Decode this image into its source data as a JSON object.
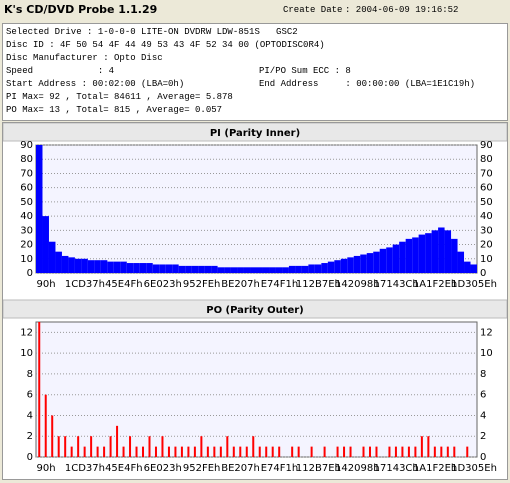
{
  "header": {
    "title": "K's CD/DVD Probe 1.1.29",
    "create_date_label": "Create Date",
    "create_date": ": 2004-06-09 19:16:52"
  },
  "info": [
    [
      "Selected Drive : 1-0-0-0 LITE-ON DVDRW LDW-851S   GSC2"
    ],
    [
      "Disc ID : 4F 50 54 4F 44 49 53 43 4F 52 34 00 (OPTODISC0R4)"
    ],
    [
      "Disc Manufacturer : Opto Disc"
    ],
    [
      "Speed            : 4",
      "PI/PO Sum ECC : 8"
    ],
    [
      "Start Address : 00:02:00 (LBA=0h)",
      "End Address     : 00:00:00 (LBA=1E1C19h)"
    ],
    [
      "PI Max= 92 , Total= 84611 , Average= 5.878"
    ],
    [
      "PO Max= 13 , Total= 815 , Average= 0.057"
    ]
  ],
  "chart_data": [
    {
      "type": "bar",
      "title": "PI (Parity Inner)",
      "color": "#0000ff",
      "grid": true,
      "ylim": [
        0,
        90
      ],
      "yticks": [
        0,
        10,
        20,
        30,
        40,
        50,
        60,
        70,
        80,
        90
      ],
      "categories": [
        "90h",
        null,
        null,
        null,
        null,
        null,
        "1CD37h",
        null,
        null,
        null,
        null,
        null,
        "45E4Fh",
        null,
        null,
        null,
        null,
        null,
        "6E023h",
        null,
        null,
        null,
        null,
        null,
        "952FEh",
        null,
        null,
        null,
        null,
        null,
        "BE207h",
        null,
        null,
        null,
        null,
        null,
        "E74F1h",
        null,
        null,
        null,
        null,
        null,
        "112B7Eh",
        null,
        null,
        null,
        null,
        null,
        "142098h",
        null,
        null,
        null,
        null,
        null,
        "17143Ch",
        null,
        null,
        null,
        null,
        null,
        "1A1F2Eh",
        null,
        null,
        null,
        null,
        null,
        "1D305Eh",
        null
      ],
      "values": [
        90,
        40,
        22,
        15,
        12,
        11,
        10,
        10,
        9,
        9,
        9,
        8,
        8,
        8,
        7,
        7,
        7,
        7,
        6,
        6,
        6,
        6,
        5,
        5,
        5,
        5,
        5,
        5,
        4,
        4,
        4,
        4,
        4,
        4,
        4,
        4,
        4,
        4,
        4,
        5,
        5,
        5,
        6,
        6,
        7,
        8,
        9,
        10,
        11,
        12,
        13,
        14,
        15,
        17,
        18,
        20,
        22,
        24,
        25,
        27,
        28,
        30,
        32,
        30,
        24,
        15,
        8,
        6
      ]
    },
    {
      "type": "bar",
      "title": "PO (Parity Outer)",
      "color": "#ff0000",
      "grid": true,
      "ylim": [
        0,
        13
      ],
      "yticks": [
        0,
        2,
        4,
        6,
        8,
        10,
        12
      ],
      "categories": [
        "90h",
        null,
        null,
        null,
        null,
        null,
        "1CD37h",
        null,
        null,
        null,
        null,
        null,
        "45E4Fh",
        null,
        null,
        null,
        null,
        null,
        "6E023h",
        null,
        null,
        null,
        null,
        null,
        "952FEh",
        null,
        null,
        null,
        null,
        null,
        "BE207h",
        null,
        null,
        null,
        null,
        null,
        "E74F1h",
        null,
        null,
        null,
        null,
        null,
        "112B7Eh",
        null,
        null,
        null,
        null,
        null,
        "142098h",
        null,
        null,
        null,
        null,
        null,
        "17143Ch",
        null,
        null,
        null,
        null,
        null,
        "1A1F2Eh",
        null,
        null,
        null,
        null,
        null,
        "1D305Eh",
        null
      ],
      "values": [
        13,
        6,
        4,
        2,
        2,
        1,
        2,
        1,
        2,
        1,
        1,
        2,
        3,
        1,
        2,
        1,
        1,
        2,
        1,
        2,
        1,
        1,
        1,
        1,
        1,
        2,
        1,
        1,
        1,
        2,
        1,
        1,
        1,
        2,
        1,
        1,
        1,
        1,
        0,
        1,
        1,
        0,
        1,
        0,
        1,
        0,
        1,
        1,
        1,
        0,
        1,
        1,
        1,
        0,
        1,
        1,
        1,
        1,
        1,
        2,
        2,
        1,
        1,
        1,
        1,
        0,
        1,
        0
      ]
    }
  ]
}
